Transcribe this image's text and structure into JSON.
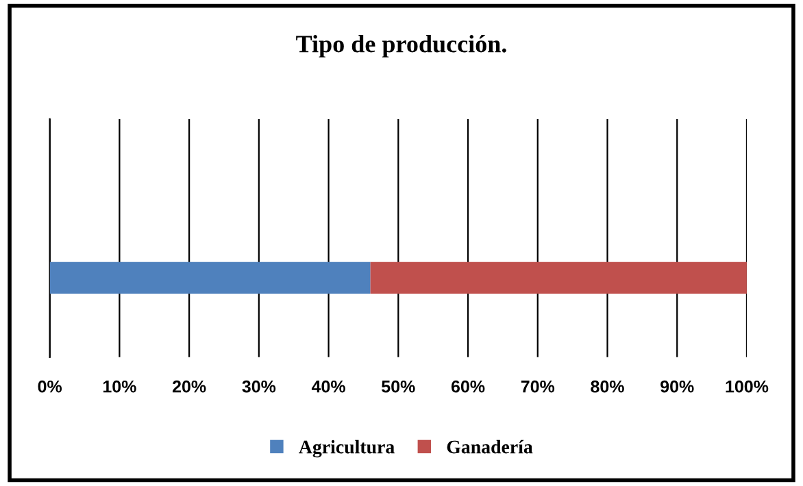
{
  "chart_data": {
    "type": "bar",
    "orientation": "horizontal",
    "stacked": true,
    "title": "Tipo de producción.",
    "categories": [
      null
    ],
    "series": [
      {
        "name": "Agricultura",
        "color": "#4f81bd",
        "values": [
          46
        ]
      },
      {
        "name": "Ganadería",
        "color": "#c0504d",
        "values": [
          54
        ]
      }
    ],
    "xlim": [
      0,
      100
    ],
    "xticks": [
      {
        "value": 0,
        "label": "0%"
      },
      {
        "value": 10,
        "label": "10%"
      },
      {
        "value": 20,
        "label": "20%"
      },
      {
        "value": 30,
        "label": "30%"
      },
      {
        "value": 40,
        "label": "40%"
      },
      {
        "value": 50,
        "label": "50%"
      },
      {
        "value": 60,
        "label": "60%"
      },
      {
        "value": 70,
        "label": "70%"
      },
      {
        "value": 80,
        "label": "80%"
      },
      {
        "value": 90,
        "label": "90%"
      },
      {
        "value": 100,
        "label": "100%"
      }
    ],
    "grid": "x",
    "legend": "bottom",
    "tick_labels": "x"
  }
}
